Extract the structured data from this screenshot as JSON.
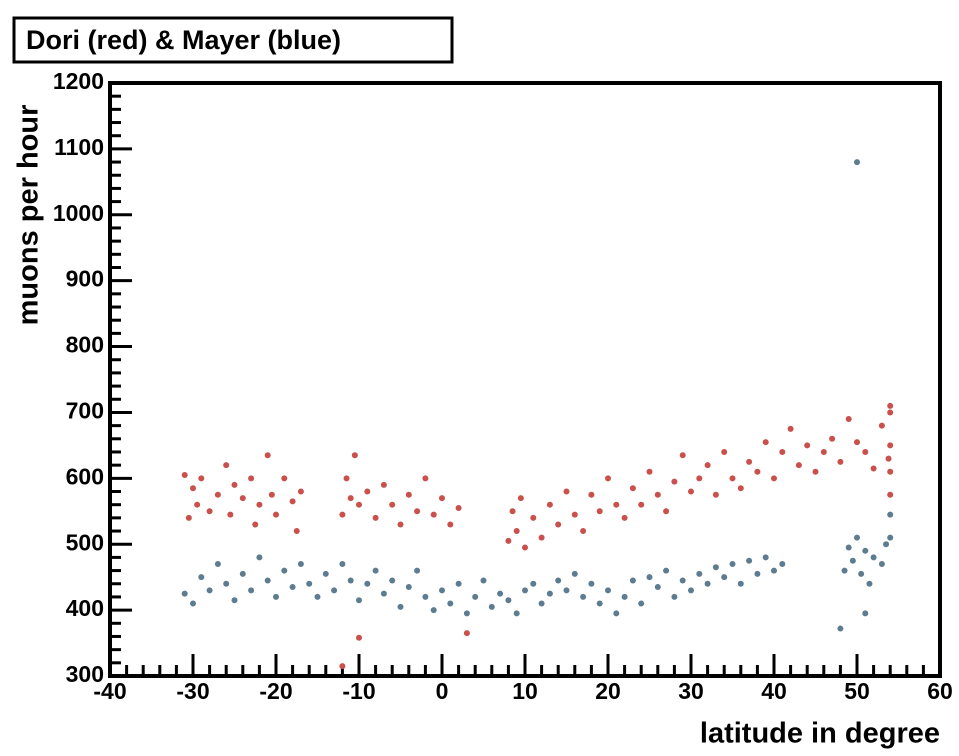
{
  "chart_data": {
    "type": "scatter",
    "title": "Dori (red) & Mayer (blue)",
    "x_label": "latitude in degree",
    "y_label": "muons per hour",
    "xlim": [
      -40,
      60
    ],
    "xticks": [
      -40,
      -30,
      -20,
      -10,
      0,
      10,
      20,
      30,
      40,
      50,
      60
    ],
    "ylim": [
      300,
      1200
    ],
    "yticks": [
      300,
      400,
      500,
      600,
      700,
      800,
      900,
      1000,
      1100,
      1200
    ],
    "grid": false,
    "series": [
      {
        "name": "Dori",
        "color": "#c9504b",
        "x": [
          -31,
          -30.5,
          -30,
          -29.5,
          -29,
          -28,
          -27,
          -26,
          -25.5,
          -25,
          -24,
          -23,
          -22.5,
          -22,
          -21,
          -20.5,
          -20,
          -19,
          -18,
          -17.5,
          -17,
          -12,
          -11.5,
          -11,
          -10.5,
          -10,
          -9,
          -8,
          -7,
          -6,
          -5,
          -4,
          -3,
          -2,
          -1,
          0,
          1,
          2,
          8,
          8.5,
          9,
          9.5,
          10,
          11,
          12,
          13,
          14,
          15,
          16,
          17,
          18,
          19,
          20,
          21,
          22,
          23,
          24,
          25,
          26,
          27,
          28,
          29,
          30,
          31,
          32,
          33,
          34,
          35,
          36,
          37,
          38,
          39,
          40,
          41,
          42,
          43,
          44,
          45,
          46,
          47,
          48,
          49,
          50,
          51,
          52,
          53,
          54,
          54,
          54,
          54,
          54,
          53.8,
          -12,
          -10,
          3
        ],
        "values": [
          605,
          540,
          585,
          560,
          600,
          550,
          575,
          620,
          545,
          590,
          570,
          600,
          530,
          560,
          635,
          575,
          545,
          600,
          565,
          520,
          580,
          545,
          600,
          570,
          635,
          560,
          580,
          540,
          590,
          560,
          530,
          575,
          550,
          600,
          545,
          570,
          530,
          555,
          505,
          550,
          520,
          570,
          495,
          540,
          510,
          560,
          530,
          580,
          545,
          520,
          575,
          550,
          600,
          560,
          540,
          585,
          560,
          610,
          575,
          550,
          595,
          635,
          580,
          600,
          620,
          575,
          640,
          600,
          585,
          625,
          610,
          655,
          600,
          640,
          675,
          620,
          650,
          610,
          640,
          660,
          625,
          690,
          655,
          640,
          615,
          680,
          700,
          650,
          610,
          575,
          710,
          630,
          315,
          358,
          365
        ]
      },
      {
        "name": "Mayer",
        "color": "#5e7c90",
        "x": [
          -31,
          -30,
          -29,
          -28,
          -27,
          -26,
          -25,
          -24,
          -23,
          -22,
          -21,
          -20,
          -19,
          -18,
          -17,
          -16,
          -15,
          -14,
          -13,
          -12,
          -11,
          -10,
          -9,
          -8,
          -7,
          -6,
          -5,
          -4,
          -3,
          -2,
          -1,
          0,
          1,
          2,
          3,
          4,
          5,
          6,
          7,
          8,
          9,
          10,
          11,
          12,
          13,
          14,
          15,
          16,
          17,
          18,
          19,
          20,
          21,
          22,
          23,
          24,
          25,
          26,
          27,
          28,
          29,
          30,
          31,
          32,
          33,
          34,
          35,
          36,
          37,
          38,
          39,
          40,
          41,
          48,
          48.5,
          49,
          49.5,
          50,
          50.5,
          51,
          51.5,
          52,
          53,
          53.5,
          54,
          54,
          50,
          51
        ],
        "values": [
          425,
          410,
          450,
          430,
          470,
          440,
          415,
          455,
          430,
          480,
          445,
          420,
          460,
          435,
          470,
          440,
          420,
          455,
          430,
          470,
          445,
          415,
          440,
          460,
          425,
          445,
          405,
          435,
          460,
          420,
          400,
          430,
          410,
          440,
          395,
          420,
          445,
          405,
          425,
          415,
          395,
          430,
          440,
          410,
          425,
          445,
          430,
          455,
          420,
          440,
          410,
          430,
          395,
          420,
          445,
          410,
          450,
          435,
          460,
          420,
          445,
          430,
          455,
          440,
          465,
          450,
          470,
          440,
          475,
          455,
          480,
          460,
          470,
          372,
          460,
          495,
          475,
          510,
          455,
          490,
          440,
          480,
          470,
          500,
          510,
          545,
          1080,
          395
        ]
      }
    ]
  }
}
